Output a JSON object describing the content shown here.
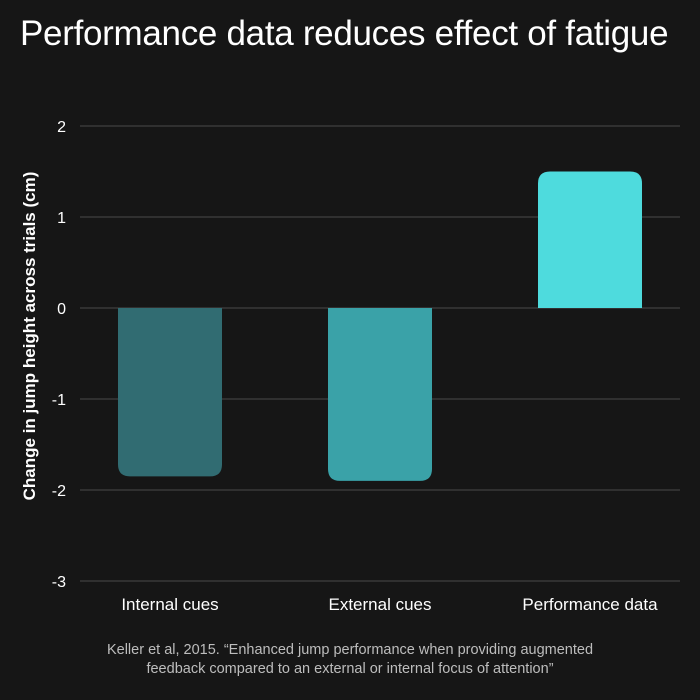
{
  "chart_data": {
    "type": "bar",
    "title": "Performance data reduces effect of fatigue",
    "ylabel": "Change in jump height across trials (cm)",
    "xlabel": "",
    "categories": [
      "Internal cues",
      "External cues",
      "Performance data"
    ],
    "values": [
      -1.85,
      -1.9,
      1.5
    ],
    "bar_colors": [
      "#316c72",
      "#3aa2a8",
      "#4edbdd"
    ],
    "ylim": [
      -3,
      2
    ],
    "yticks": [
      2,
      1,
      0,
      -1,
      -2,
      -3
    ],
    "grid": true,
    "legend": "none"
  },
  "source": {
    "line1": "Keller et al, 2015. “Enhanced jump performance when providing augmented",
    "line2": "feedback compared to an external or internal focus of attention”"
  },
  "colors": {
    "background": "#161616",
    "grid": "#4a4a4a",
    "text": "#ffffff"
  }
}
